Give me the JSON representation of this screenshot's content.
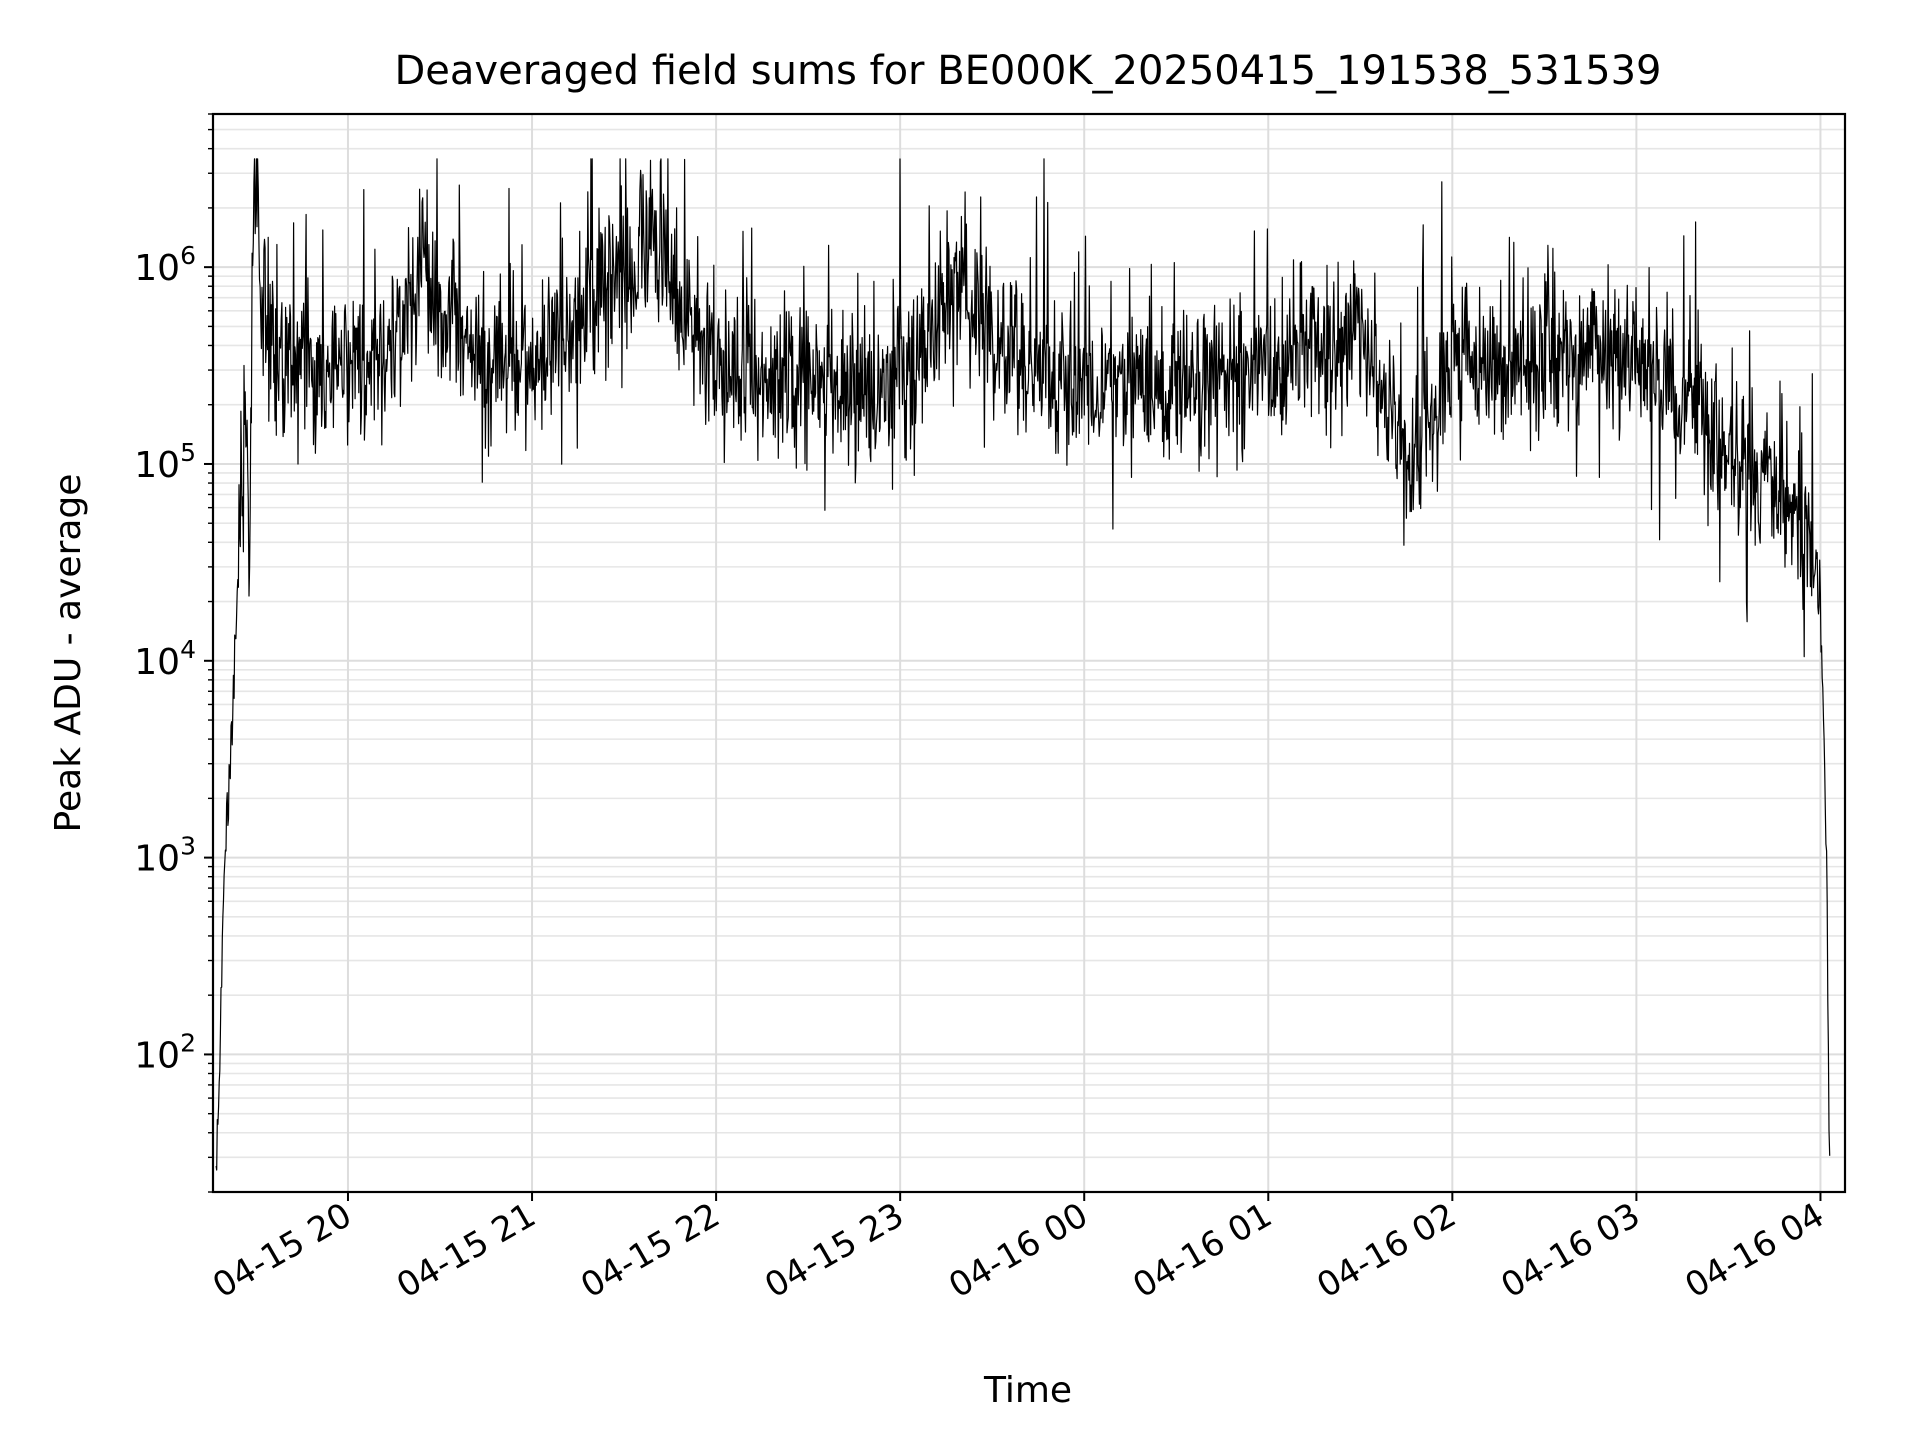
{
  "chart_data": {
    "type": "line",
    "title": "Deaveraged field sums for BE000K_20250415_191538_531539",
    "xlabel": "Time",
    "ylabel": "Peak ADU - average",
    "y_scale": "log",
    "ylim": [
      20,
      6000000
    ],
    "xlim": [
      "2025-04-15 19:16",
      "2025-04-16 04:08"
    ],
    "grid": true,
    "line_color": "#000000",
    "x_ticks": [
      {
        "t": "2025-04-15 20:00",
        "label": "04-15 20"
      },
      {
        "t": "2025-04-15 21:00",
        "label": "04-15 21"
      },
      {
        "t": "2025-04-15 22:00",
        "label": "04-15 22"
      },
      {
        "t": "2025-04-15 23:00",
        "label": "04-15 23"
      },
      {
        "t": "2025-04-16 00:00",
        "label": "04-16 00"
      },
      {
        "t": "2025-04-16 01:00",
        "label": "04-16 01"
      },
      {
        "t": "2025-04-16 02:00",
        "label": "04-16 02"
      },
      {
        "t": "2025-04-16 03:00",
        "label": "04-16 03"
      },
      {
        "t": "2025-04-16 04:00",
        "label": "04-16 04"
      }
    ],
    "y_ticks": [
      {
        "value": 100,
        "base": "10",
        "exp": "2"
      },
      {
        "value": 1000,
        "base": "10",
        "exp": "3"
      },
      {
        "value": 10000,
        "base": "10",
        "exp": "4"
      },
      {
        "value": 100000,
        "base": "10",
        "exp": "5"
      },
      {
        "value": 1000000,
        "base": "10",
        "exp": "6"
      }
    ],
    "series": [
      {
        "points": [
          [
            "2025-04-15 19:17",
            25
          ],
          [
            "2025-04-15 19:18",
            60
          ],
          [
            "2025-04-15 19:19",
            400
          ],
          [
            "2025-04-15 19:20",
            1000
          ],
          [
            "2025-04-15 19:21",
            2000
          ],
          [
            "2025-04-15 19:22",
            4000
          ],
          [
            "2025-04-15 19:23",
            9000
          ],
          [
            "2025-04-15 19:24",
            20000
          ],
          [
            "2025-04-15 19:25",
            60000
          ],
          [
            "2025-04-15 19:26",
            130000
          ],
          [
            "2025-04-15 19:27",
            150000
          ],
          [
            "2025-04-15 19:28",
            30000
          ],
          [
            "2025-04-15 19:29",
            1500000
          ],
          [
            "2025-04-15 19:30",
            2500000
          ],
          [
            "2025-04-15 19:32",
            600000
          ],
          [
            "2025-04-15 19:36",
            350000
          ],
          [
            "2025-04-15 19:45",
            300000
          ],
          [
            "2025-04-15 20:00",
            320000
          ],
          [
            "2025-04-15 20:15",
            350000
          ],
          [
            "2025-04-15 20:25",
            1200000
          ],
          [
            "2025-04-15 20:30",
            600000
          ],
          [
            "2025-04-15 20:45",
            300000
          ],
          [
            "2025-04-15 21:00",
            330000
          ],
          [
            "2025-04-15 21:15",
            500000
          ],
          [
            "2025-04-15 21:30",
            900000
          ],
          [
            "2025-04-15 21:40",
            1500000
          ],
          [
            "2025-04-15 21:50",
            600000
          ],
          [
            "2025-04-15 22:00",
            300000
          ],
          [
            "2025-04-15 22:30",
            250000
          ],
          [
            "2025-04-15 23:00",
            230000
          ],
          [
            "2025-04-15 23:20",
            900000
          ],
          [
            "2025-04-15 23:30",
            400000
          ],
          [
            "2025-04-16 00:00",
            250000
          ],
          [
            "2025-04-16 00:30",
            250000
          ],
          [
            "2025-04-16 01:00",
            300000
          ],
          [
            "2025-04-16 01:30",
            500000
          ],
          [
            "2025-04-16 01:45",
            100000
          ],
          [
            "2025-04-16 02:00",
            300000
          ],
          [
            "2025-04-16 02:30",
            350000
          ],
          [
            "2025-04-16 03:00",
            350000
          ],
          [
            "2025-04-16 03:20",
            200000
          ],
          [
            "2025-04-16 03:30",
            100000
          ],
          [
            "2025-04-16 03:45",
            80000
          ],
          [
            "2025-04-16 03:55",
            50000
          ],
          [
            "2025-04-16 04:00",
            20000
          ],
          [
            "2025-04-16 04:02",
            1000
          ],
          [
            "2025-04-16 04:03",
            20
          ]
        ]
      }
    ]
  }
}
